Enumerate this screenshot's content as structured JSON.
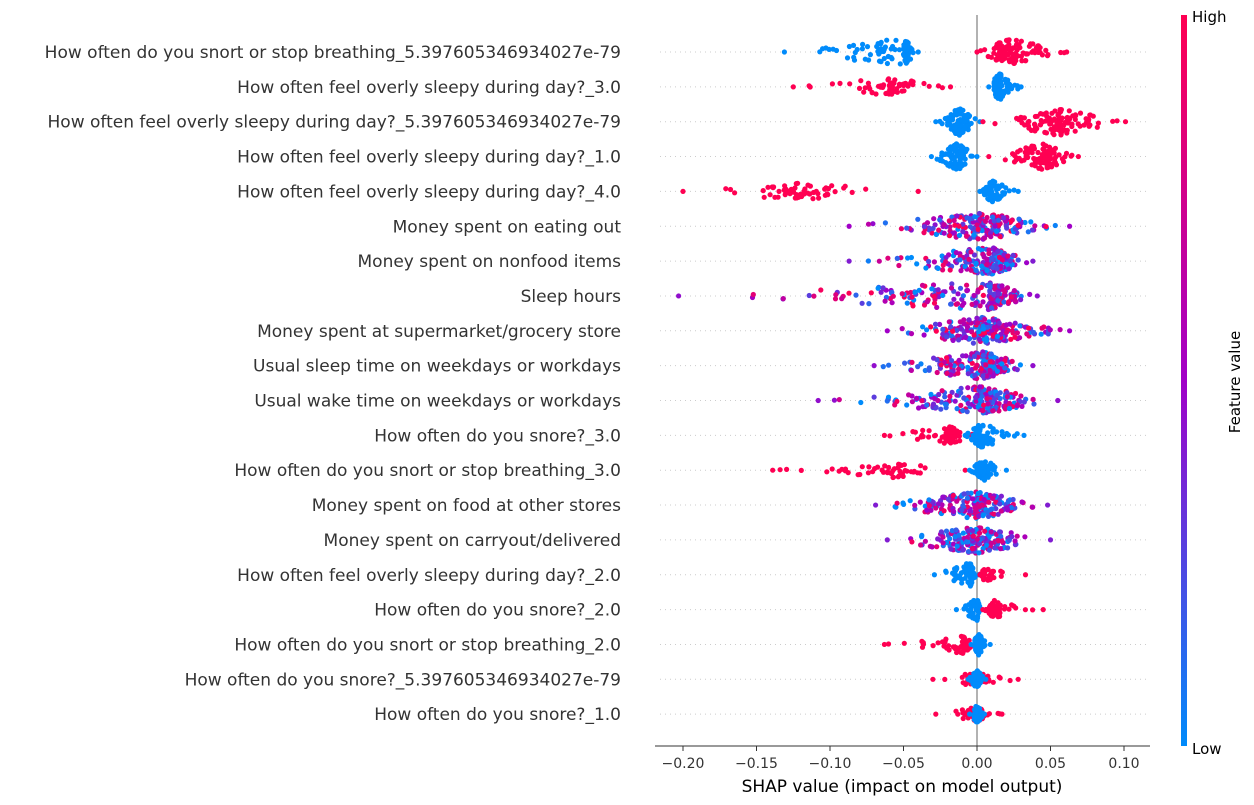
{
  "chart_data": {
    "type": "scatter",
    "subtype": "shap-beeswarm",
    "title": "",
    "xlabel": "SHAP value (impact on model output)",
    "xlim": [
      -0.22,
      0.12
    ],
    "xticks": [
      -0.2,
      -0.15,
      -0.1,
      -0.05,
      0.0,
      0.05,
      0.1
    ],
    "xtick_labels": [
      "−0.20",
      "−0.15",
      "−0.10",
      "−0.05",
      "0.00",
      "0.05",
      "0.10"
    ],
    "grid": false,
    "colorbar": {
      "label": "Feature value",
      "high_label": "High",
      "low_label": "Low",
      "low_color": "#008bfb",
      "mid_color": "#a100c7",
      "high_color": "#ff0052"
    },
    "features": [
      {
        "name": "How often do you snort or stop breathing_5.397605346934027e-79",
        "x_min": -0.131,
        "x_max": 0.061,
        "groups": [
          {
            "lo": -0.131,
            "hi": -0.04,
            "peak": -0.05,
            "color": 0,
            "n": 90
          },
          {
            "lo": 0.0,
            "hi": 0.061,
            "peak": 0.022,
            "color": 1,
            "n": 110
          }
        ]
      },
      {
        "name": "How often feel overly sleepy during day?_3.0",
        "x_min": -0.125,
        "x_max": 0.03,
        "groups": [
          {
            "lo": -0.125,
            "hi": -0.018,
            "peak": -0.06,
            "color": 1,
            "n": 60
          },
          {
            "lo": 0.008,
            "hi": 0.03,
            "peak": 0.015,
            "color": 0,
            "n": 90
          }
        ]
      },
      {
        "name": "How often feel overly sleepy during day?_5.397605346934027e-79",
        "x_min": -0.028,
        "x_max": 0.101,
        "groups": [
          {
            "lo": -0.028,
            "hi": 0.002,
            "peak": -0.012,
            "color": 0,
            "n": 90
          },
          {
            "lo": 0.004,
            "hi": 0.101,
            "peak": 0.055,
            "color": 1,
            "n": 110
          }
        ]
      },
      {
        "name": "How often feel overly sleepy during day?_1.0",
        "x_min": -0.031,
        "x_max": 0.069,
        "groups": [
          {
            "lo": -0.031,
            "hi": 0.0,
            "peak": -0.013,
            "color": 0,
            "n": 90
          },
          {
            "lo": 0.008,
            "hi": 0.069,
            "peak": 0.045,
            "color": 1,
            "n": 90
          }
        ]
      },
      {
        "name": "How often feel overly sleepy during day?_4.0",
        "x_min": -0.2,
        "x_max": 0.028,
        "groups": [
          {
            "lo": -0.2,
            "hi": -0.04,
            "peak": -0.12,
            "color": 1,
            "n": 55
          },
          {
            "lo": 0.002,
            "hi": 0.028,
            "peak": 0.01,
            "color": 0,
            "n": 70
          }
        ]
      },
      {
        "name": "Money spent on eating out",
        "x_min": -0.087,
        "x_max": 0.063,
        "groups": [
          {
            "lo": -0.087,
            "hi": 0.063,
            "peak": 0.002,
            "color": 0.5,
            "n": 200
          }
        ]
      },
      {
        "name": "Money spent on nonfood items",
        "x_min": -0.087,
        "x_max": 0.038,
        "groups": [
          {
            "lo": -0.087,
            "hi": 0.038,
            "peak": 0.01,
            "color": 0.4,
            "n": 200
          }
        ]
      },
      {
        "name": "Sleep hours",
        "x_min": -0.203,
        "x_max": 0.041,
        "groups": [
          {
            "lo": -0.203,
            "hi": 0.041,
            "peak": 0.008,
            "color": 0.45,
            "n": 200
          }
        ]
      },
      {
        "name": "Money spent at supermarket/grocery store",
        "x_min": -0.061,
        "x_max": 0.063,
        "groups": [
          {
            "lo": -0.061,
            "hi": 0.063,
            "peak": 0.003,
            "color": 0.5,
            "n": 200
          }
        ]
      },
      {
        "name": "Usual sleep time on weekdays or workdays",
        "x_min": -0.07,
        "x_max": 0.038,
        "groups": [
          {
            "lo": -0.07,
            "hi": 0.038,
            "peak": 0.004,
            "color": 0.45,
            "n": 200
          }
        ]
      },
      {
        "name": "Usual wake time on weekdays or workdays",
        "x_min": -0.108,
        "x_max": 0.055,
        "groups": [
          {
            "lo": -0.108,
            "hi": 0.055,
            "peak": 0.002,
            "color": 0.45,
            "n": 200
          }
        ]
      },
      {
        "name": "How often do you snore?_3.0",
        "x_min": -0.063,
        "x_max": 0.032,
        "groups": [
          {
            "lo": -0.063,
            "hi": 0.0,
            "peak": -0.02,
            "color": 1,
            "n": 60
          },
          {
            "lo": -0.008,
            "hi": 0.032,
            "peak": 0.002,
            "color": 0,
            "n": 80
          }
        ]
      },
      {
        "name": "How often do you snort or stop breathing_3.0",
        "x_min": -0.139,
        "x_max": 0.02,
        "groups": [
          {
            "lo": -0.139,
            "hi": -0.008,
            "peak": -0.06,
            "color": 1,
            "n": 50
          },
          {
            "lo": -0.005,
            "hi": 0.02,
            "peak": 0.004,
            "color": 0,
            "n": 70
          }
        ]
      },
      {
        "name": "Money spent on food at other stores",
        "x_min": -0.069,
        "x_max": 0.048,
        "groups": [
          {
            "lo": -0.069,
            "hi": 0.048,
            "peak": 0.0,
            "color": 0.4,
            "n": 190
          }
        ]
      },
      {
        "name": "Money spent on carryout/delivered ",
        "x_min": -0.061,
        "x_max": 0.05,
        "groups": [
          {
            "lo": -0.061,
            "hi": 0.05,
            "peak": 0.0,
            "color": 0.4,
            "n": 190
          }
        ]
      },
      {
        "name": "How often feel overly sleepy during day?_2.0",
        "x_min": -0.029,
        "x_max": 0.033,
        "groups": [
          {
            "lo": -0.029,
            "hi": 0.001,
            "peak": -0.005,
            "color": 0,
            "n": 80
          },
          {
            "lo": 0.002,
            "hi": 0.033,
            "peak": 0.005,
            "color": 1,
            "n": 40
          }
        ]
      },
      {
        "name": "How often do you snore?_2.0",
        "x_min": -0.014,
        "x_max": 0.045,
        "groups": [
          {
            "lo": -0.014,
            "hi": 0.003,
            "peak": 0.0,
            "color": 0,
            "n": 70
          },
          {
            "lo": 0.004,
            "hi": 0.045,
            "peak": 0.012,
            "color": 1,
            "n": 60
          }
        ]
      },
      {
        "name": "How often do you snort or stop breathing_2.0",
        "x_min": -0.063,
        "x_max": 0.009,
        "groups": [
          {
            "lo": -0.063,
            "hi": 0.0,
            "peak": -0.01,
            "color": 1,
            "n": 60
          },
          {
            "lo": -0.004,
            "hi": 0.009,
            "peak": 0.001,
            "color": 0,
            "n": 70
          }
        ]
      },
      {
        "name": "How often do you snore?_5.397605346934027e-79",
        "x_min": -0.03,
        "x_max": 0.028,
        "groups": [
          {
            "lo": -0.03,
            "hi": 0.028,
            "peak": 0.0,
            "color": 1,
            "n": 45
          },
          {
            "lo": -0.006,
            "hi": 0.006,
            "peak": 0.0,
            "color": 0,
            "n": 60
          }
        ]
      },
      {
        "name": "How often do you snore?_1.0",
        "x_min": -0.028,
        "x_max": 0.017,
        "groups": [
          {
            "lo": -0.028,
            "hi": 0.017,
            "peak": 0.0,
            "color": 1,
            "n": 45
          },
          {
            "lo": -0.005,
            "hi": 0.005,
            "peak": 0.0,
            "color": 0,
            "n": 60
          }
        ]
      }
    ]
  }
}
